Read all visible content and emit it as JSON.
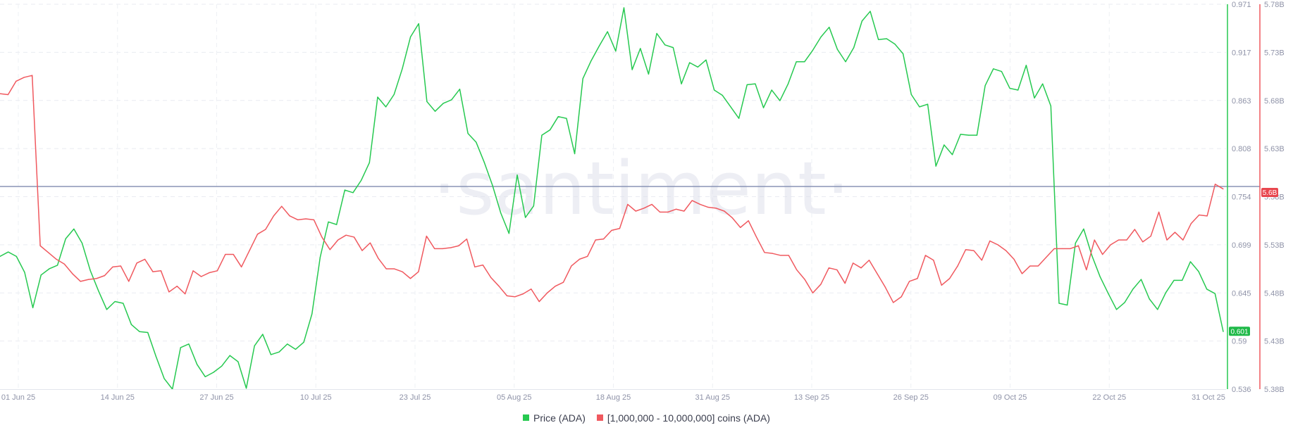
{
  "chart_data": {
    "type": "line",
    "watermark": "·santiment·",
    "x_tick_labels": [
      "01 Jun 25",
      "14 Jun 25",
      "27 Jun 25",
      "10 Jul 25",
      "23 Jul 25",
      "05 Aug 25",
      "18 Aug 25",
      "31 Aug 25",
      "13 Sep 25",
      "26 Sep 25",
      "09 Oct 25",
      "22 Oct 25",
      "31 Oct 25"
    ],
    "x_range": [
      "01 Jun 25",
      "31 Oct 25"
    ],
    "grid": true,
    "legend_position": "bottom-center",
    "axes": {
      "price": {
        "side": "right-inner",
        "color": "#26c950",
        "range": [
          0.536,
          0.971
        ],
        "ticks": [
          "0.971",
          "0.917",
          "0.863",
          "0.808",
          "0.754",
          "0.699",
          "0.645",
          "0.59",
          "0.536"
        ]
      },
      "holdings": {
        "side": "right-outer",
        "color": "#f0595f",
        "range": [
          5.38,
          5.78
        ],
        "ticks": [
          "5.78B",
          "5.73B",
          "5.68B",
          "5.63B",
          "5.58B",
          "5.53B",
          "5.48B",
          "5.43B",
          "5.38B"
        ]
      }
    },
    "reference_line": {
      "value_B": 5.5906,
      "color": "#8a93b5"
    },
    "badges": {
      "price_last": "0.601",
      "holdings_last": "5.6B"
    },
    "series": [
      {
        "name": "Price (ADA)",
        "color": "#26c950",
        "axis": "price",
        "values": [
          0.686,
          0.691,
          0.686,
          0.668,
          0.628,
          0.665,
          0.672,
          0.676,
          0.706,
          0.717,
          0.701,
          0.67,
          0.647,
          0.626,
          0.635,
          0.633,
          0.609,
          0.601,
          0.6,
          0.573,
          0.548,
          0.536,
          0.583,
          0.587,
          0.564,
          0.55,
          0.555,
          0.562,
          0.574,
          0.567,
          0.537,
          0.585,
          0.598,
          0.575,
          0.578,
          0.587,
          0.581,
          0.589,
          0.621,
          0.685,
          0.725,
          0.722,
          0.761,
          0.758,
          0.772,
          0.792,
          0.866,
          0.855,
          0.869,
          0.898,
          0.934,
          0.949,
          0.861,
          0.85,
          0.859,
          0.863,
          0.875,
          0.825,
          0.815,
          0.792,
          0.766,
          0.735,
          0.712,
          0.778,
          0.73,
          0.743,
          0.823,
          0.829,
          0.844,
          0.842,
          0.802,
          0.887,
          0.907,
          0.924,
          0.94,
          0.918,
          0.967,
          0.897,
          0.921,
          0.892,
          0.938,
          0.925,
          0.922,
          0.881,
          0.905,
          0.9,
          0.908,
          0.874,
          0.868,
          0.855,
          0.842,
          0.88,
          0.881,
          0.854,
          0.874,
          0.862,
          0.881,
          0.906,
          0.906,
          0.919,
          0.934,
          0.945,
          0.92,
          0.906,
          0.922,
          0.952,
          0.963,
          0.931,
          0.932,
          0.926,
          0.915,
          0.869,
          0.855,
          0.858,
          0.788,
          0.812,
          0.801,
          0.824,
          0.823,
          0.823,
          0.879,
          0.898,
          0.895,
          0.876,
          0.874,
          0.902,
          0.865,
          0.881,
          0.856,
          0.633,
          0.631,
          0.701,
          0.717,
          0.687,
          0.663,
          0.644,
          0.626,
          0.634,
          0.649,
          0.66,
          0.638,
          0.626,
          0.645,
          0.659,
          0.659,
          0.68,
          0.669,
          0.649,
          0.644,
          0.601
        ]
      },
      {
        "name": "[1,000,000 - 10,000,000] coins (ADA)",
        "color": "#f0595f",
        "axis": "holdings",
        "values": [
          5.687,
          5.686,
          5.7,
          5.704,
          5.706,
          5.529,
          5.522,
          5.515,
          5.51,
          5.5,
          5.492,
          5.494,
          5.495,
          5.498,
          5.507,
          5.508,
          5.492,
          5.511,
          5.515,
          5.502,
          5.503,
          5.481,
          5.487,
          5.479,
          5.503,
          5.497,
          5.501,
          5.503,
          5.52,
          5.52,
          5.507,
          5.524,
          5.541,
          5.546,
          5.56,
          5.57,
          5.56,
          5.556,
          5.557,
          5.556,
          5.538,
          5.525,
          5.535,
          5.54,
          5.538,
          5.524,
          5.532,
          5.516,
          5.505,
          5.505,
          5.502,
          5.495,
          5.502,
          5.539,
          5.526,
          5.526,
          5.527,
          5.529,
          5.536,
          5.507,
          5.509,
          5.496,
          5.487,
          5.477,
          5.476,
          5.479,
          5.484,
          5.471,
          5.48,
          5.487,
          5.491,
          5.508,
          5.515,
          5.518,
          5.535,
          5.536,
          5.545,
          5.547,
          5.572,
          5.565,
          5.568,
          5.572,
          5.564,
          5.564,
          5.567,
          5.565,
          5.576,
          5.572,
          5.569,
          5.568,
          5.565,
          5.558,
          5.548,
          5.555,
          5.538,
          5.522,
          5.521,
          5.519,
          5.519,
          5.504,
          5.494,
          5.48,
          5.489,
          5.506,
          5.504,
          5.49,
          5.511,
          5.506,
          5.514,
          5.5,
          5.486,
          5.47,
          5.476,
          5.492,
          5.495,
          5.519,
          5.514,
          5.488,
          5.495,
          5.508,
          5.525,
          5.524,
          5.514,
          5.534,
          5.53,
          5.524,
          5.515,
          5.5,
          5.508,
          5.508,
          5.517,
          5.526,
          5.526,
          5.526,
          5.529,
          5.504,
          5.535,
          5.52,
          5.53,
          5.535,
          5.535,
          5.546,
          5.533,
          5.539,
          5.564,
          5.535,
          5.543,
          5.535,
          5.552,
          5.561,
          5.56,
          5.593,
          5.588
        ]
      }
    ]
  }
}
